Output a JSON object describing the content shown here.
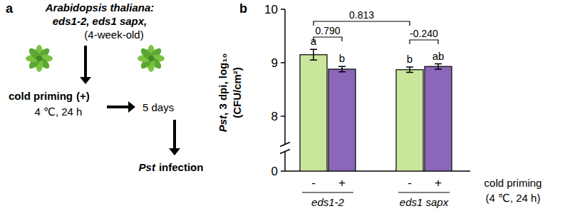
{
  "panel_a": {
    "label": "a",
    "species": "Arabidopsis thaliana:",
    "genotypes": "eds1-2, eds1 sapx,",
    "age": "(4-week-old)",
    "treatment": "cold priming",
    "treatment_sign": "(+)",
    "treatment_condition": "4 ℃, 24 h",
    "interval": "5 days",
    "pathogen": "Pst",
    "infection": "infection"
  },
  "chart_data": {
    "type": "bar",
    "panel_label": "b",
    "ylabel": {
      "species": "Pst",
      "line1": ", 3 dpi, log₁₀",
      "line2": "(CFU/cm²)"
    },
    "groups": [
      "eds1-2",
      "eds1 sapx"
    ],
    "categories": [
      "-",
      "+",
      "-",
      "+"
    ],
    "values": [
      9.15,
      8.88,
      8.87,
      8.93
    ],
    "errors": [
      0.1,
      0.05,
      0.05,
      0.05
    ],
    "colors": [
      "#c9e69b",
      "#8c66b8",
      "#c9e69b",
      "#8c66b8"
    ],
    "significance": [
      "a",
      "b",
      "b",
      "ab"
    ],
    "comparisons": [
      "0.790",
      "0.813",
      "-0.240"
    ],
    "x_row_label": [
      "cold priming",
      "(4 ℃, 24 h)"
    ],
    "ylim": [
      0,
      10
    ],
    "yticks": [
      0,
      8,
      9,
      10
    ],
    "y_break": [
      0,
      7.5
    ]
  }
}
